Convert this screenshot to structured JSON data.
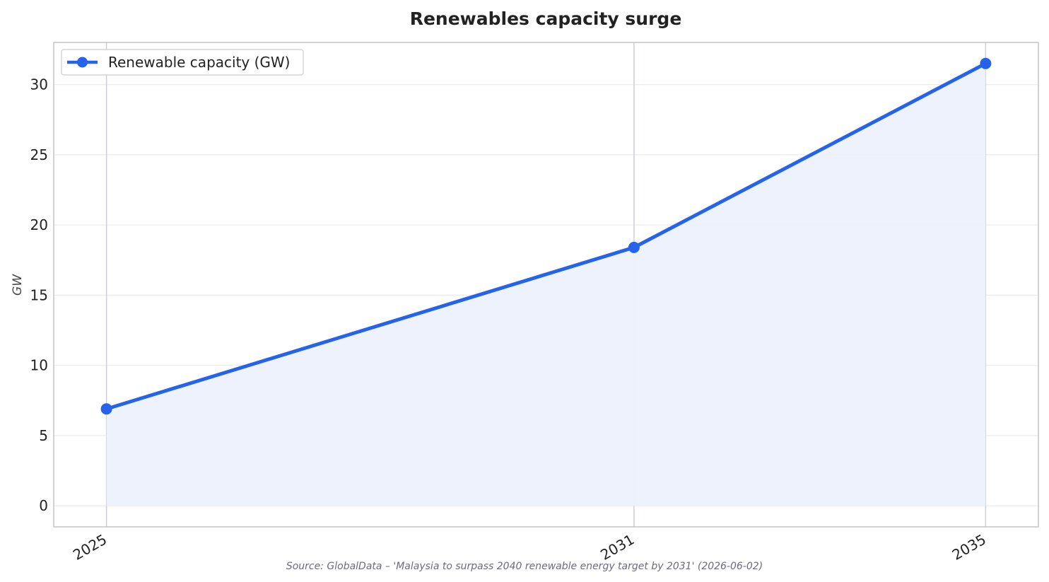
{
  "chart_data": {
    "type": "line",
    "title": "Renewables capacity surge",
    "ylabel": "GW",
    "xlabel": "",
    "x": [
      2025,
      2031,
      2035
    ],
    "series": [
      {
        "name": "Renewable capacity (GW)",
        "values": [
          6.9,
          18.4,
          31.5
        ],
        "color": "#2563eb"
      }
    ],
    "ylim": [
      -1.5,
      33
    ],
    "xlim": [
      2024.4,
      2035.6
    ],
    "yticks": [
      0,
      5,
      10,
      15,
      20,
      25,
      30
    ],
    "xticks": [
      2025,
      2031,
      2035
    ],
    "grid": "on",
    "legend": "top-left",
    "fill_color": "#ecf1fc",
    "source": "Source: GlobalData – 'Malaysia to surpass 2040 renewable energy target by 2031' (2026-06-02)"
  }
}
